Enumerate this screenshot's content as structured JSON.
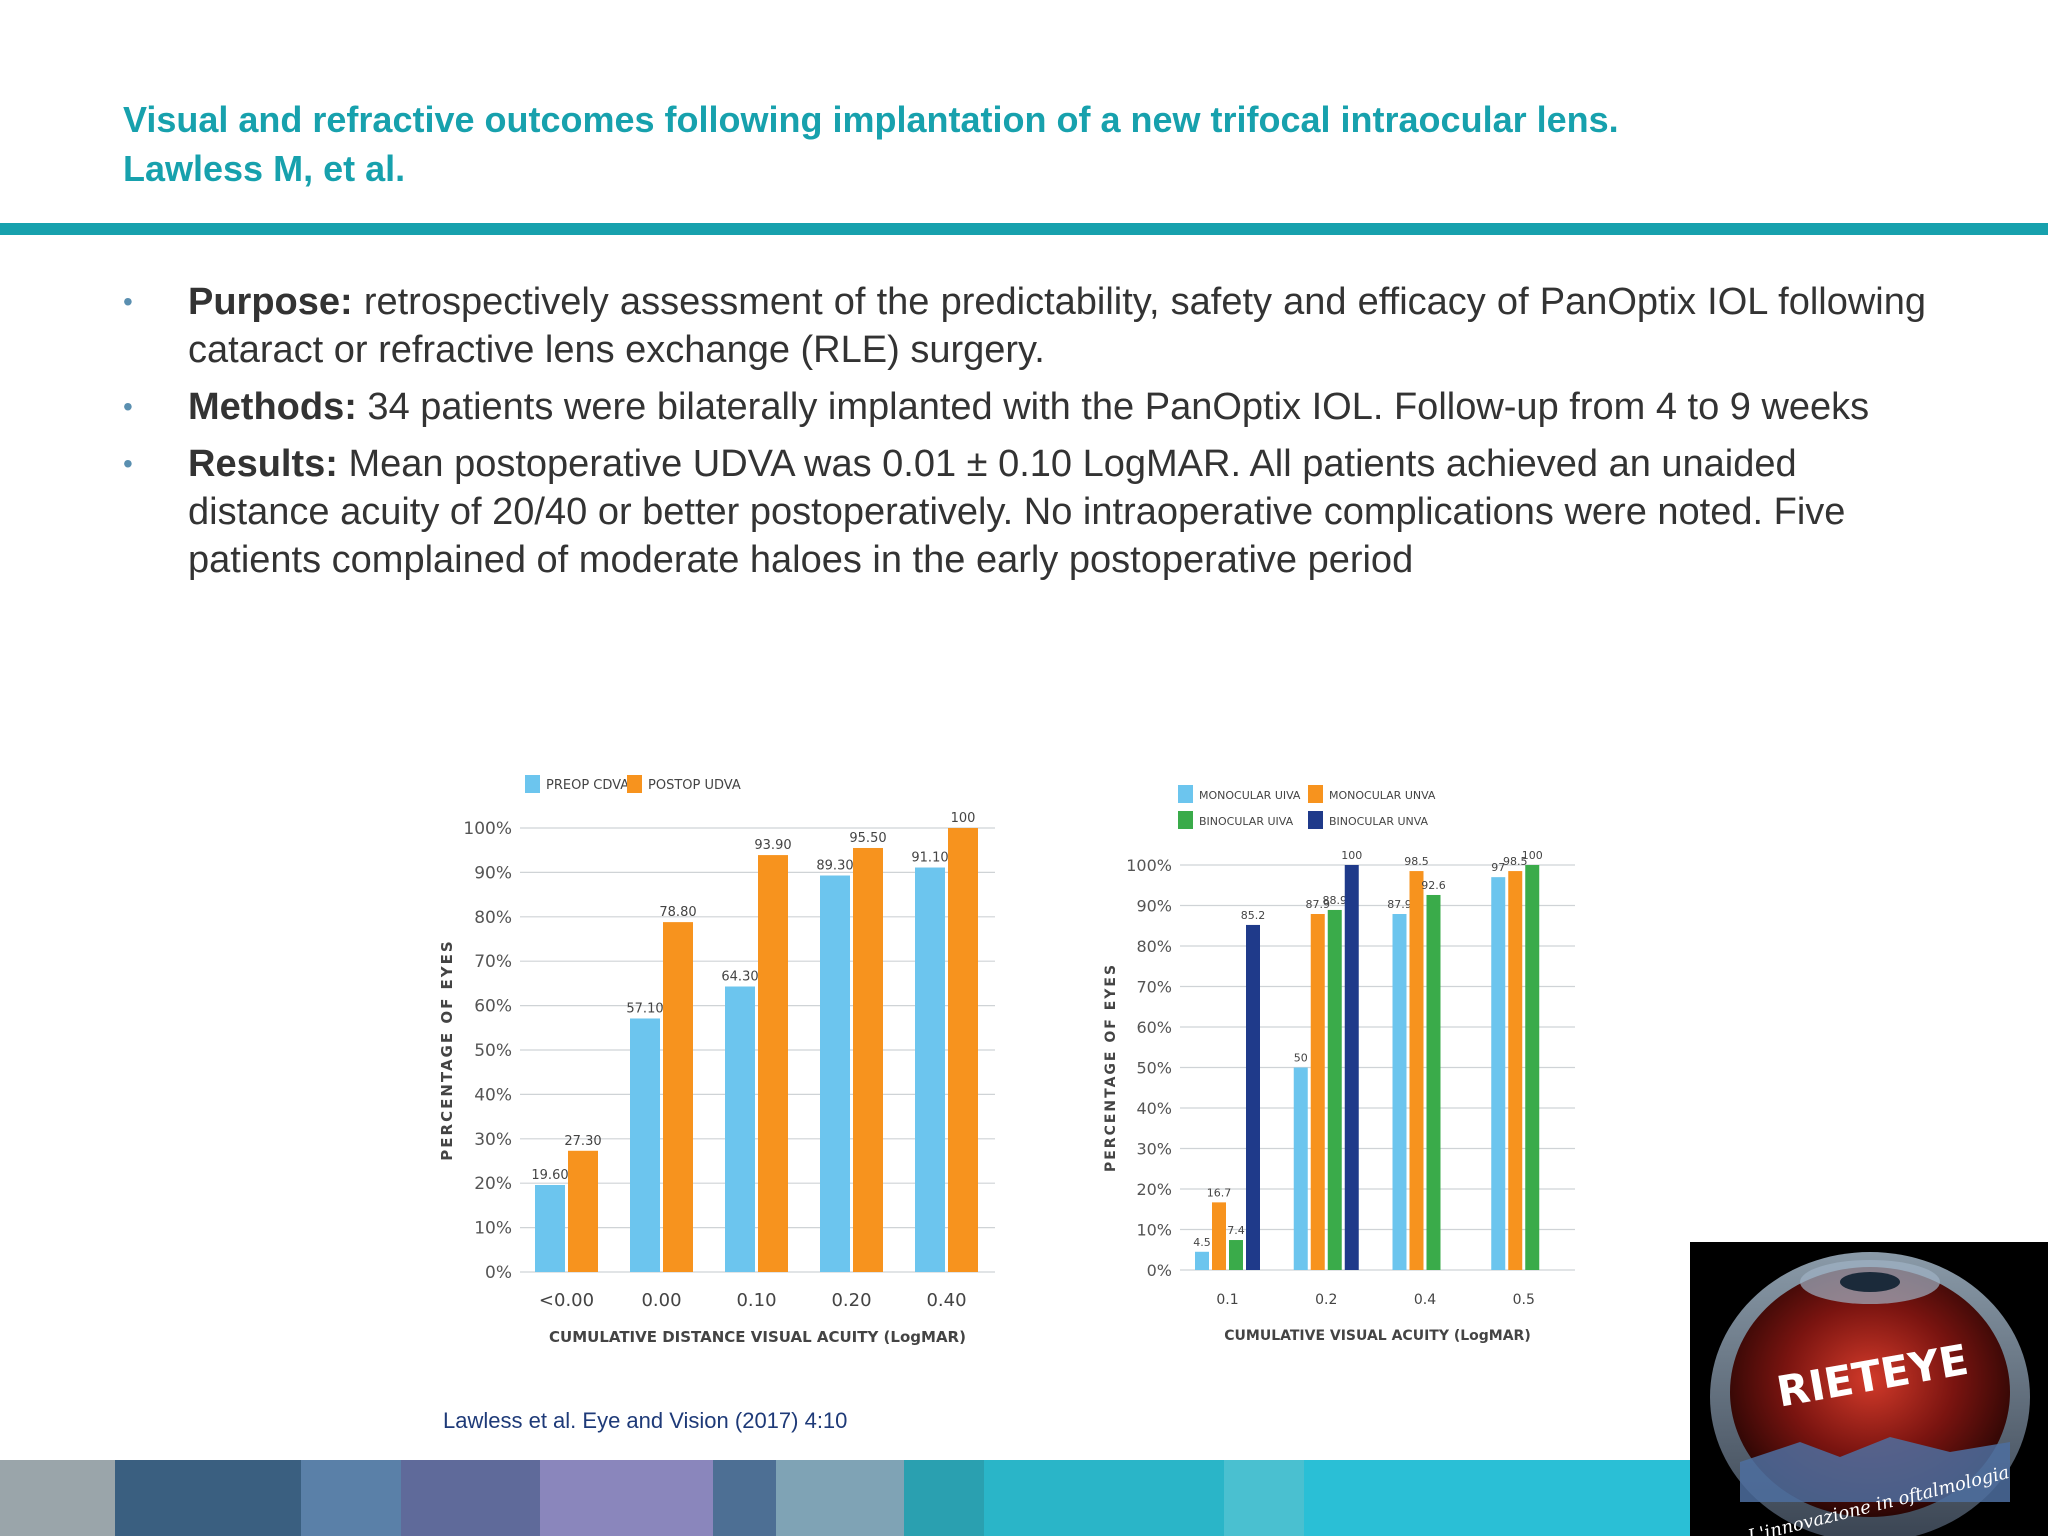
{
  "header": {
    "title_line1": "Visual and refractive outcomes following implantation of a new trifocal intraocular lens.",
    "title_line2": "Lawless M, et al."
  },
  "bullets": [
    {
      "label": "Purpose:",
      "text": " retrospectively assessment of the predictability, safety and efficacy of PanOptix IOL following cataract or refractive lens exchange (RLE) surgery."
    },
    {
      "label": "Methods:",
      "text": " 34 patients were bilaterally implanted with the PanOptix IOL. Follow-up from 4 to 9 weeks"
    },
    {
      "label": "Results:",
      "text": " Mean postoperative UDVA was 0.01 ± 0.10 LogMAR. All patients achieved an unaided distance acuity of 20/40 or better postoperatively. No intraoperative complications were noted. Five patients  complained of moderate haloes in the early postoperative period"
    }
  ],
  "chart_data": [
    {
      "type": "bar",
      "title": "",
      "xlabel": "CUMULATIVE DISTANCE VISUAL ACUITY (LogMAR)",
      "ylabel": "PERCENTAGE OF EYES",
      "ylim": [
        0,
        100
      ],
      "yticks": [
        "0%",
        "10%",
        "20%",
        "30%",
        "40%",
        "50%",
        "60%",
        "70%",
        "80%",
        "90%",
        "100%"
      ],
      "categories": [
        "<0.00",
        "0.00",
        "0.10",
        "0.20",
        "0.40"
      ],
      "legend_position": "top-left",
      "grid": true,
      "series": [
        {
          "name": "PREOP CDVA",
          "color": "#6cc5ee",
          "values": [
            19.6,
            57.1,
            64.3,
            89.3,
            91.1
          ],
          "labels": [
            "19.60",
            "57.10",
            "64.30",
            "89.30",
            "91.10"
          ]
        },
        {
          "name": "POSTOP UDVA",
          "color": "#f7931e",
          "values": [
            27.3,
            78.8,
            93.9,
            95.5,
            100
          ],
          "labels": [
            "27.30",
            "78.80",
            "93.90",
            "95.50",
            "100"
          ]
        }
      ]
    },
    {
      "type": "bar",
      "title": "",
      "xlabel": "CUMULATIVE VISUAL ACUITY (LogMAR)",
      "ylabel": "PERCENTAGE OF EYES",
      "ylim": [
        0,
        100
      ],
      "yticks": [
        "0%",
        "10%",
        "20%",
        "30%",
        "40%",
        "50%",
        "60%",
        "70%",
        "80%",
        "90%",
        "100%"
      ],
      "categories": [
        "0.1",
        "0.2",
        "0.4",
        "0.5"
      ],
      "legend_position": "top-left",
      "grid": true,
      "series": [
        {
          "name": "MONOCULAR UIVA",
          "color": "#6cc5ee",
          "values": [
            4.5,
            50,
            87.9,
            97
          ],
          "labels": [
            "4.5",
            "50",
            "87.9",
            "97"
          ]
        },
        {
          "name": "MONOCULAR UNVA",
          "color": "#f7931e",
          "values": [
            16.7,
            87.9,
            98.5,
            98.5
          ],
          "labels": [
            "16.7",
            "87.9",
            "98.5",
            "98.5"
          ]
        },
        {
          "name": "BINOCULAR UIVA",
          "color": "#3aab4a",
          "values": [
            7.4,
            88.9,
            92.6,
            100
          ],
          "labels": [
            "7.4",
            "88.9",
            "92.6",
            "100"
          ]
        },
        {
          "name": "BINOCULAR UNVA",
          "color": "#1f3a8a",
          "values": [
            85.2,
            100,
            null,
            null
          ],
          "labels": [
            "85.2",
            "100",
            "",
            ""
          ]
        }
      ]
    }
  ],
  "citation": "Lawless et al. Eye and Vision (2017) 4:10",
  "footer_colors": [
    "#9aa5aa",
    "#3a5f80",
    "#5a80a8",
    "#5f6a9a",
    "#8a86bc",
    "#4d6f94",
    "#7fa3b5",
    "#2aa0b0",
    "#2ab5c8",
    "#4ac0d0",
    "#2abfd6"
  ],
  "logo": {
    "text": "RIETEYE",
    "subtext": "L'innovazione in oftalmologia"
  }
}
